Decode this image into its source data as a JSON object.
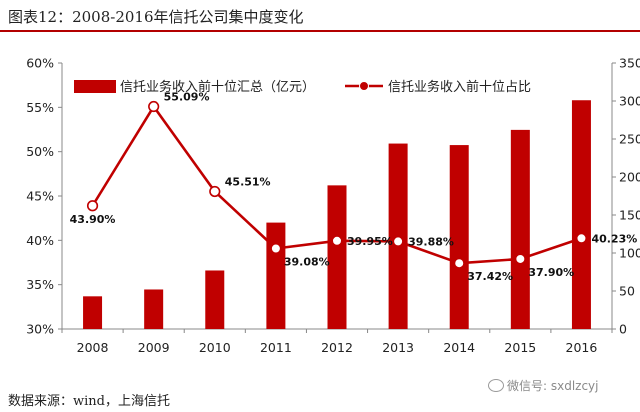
{
  "figure": {
    "title": "图表12：2008-2016年信托公司集中度变化",
    "source": "数据来源：wind，上海信托",
    "watermark": "微信号: sxdlzcyj"
  },
  "colors": {
    "bar": "#c00000",
    "line": "#c00000",
    "axis": "#888888"
  },
  "chart_data": {
    "type": "bar+line",
    "title": "2008-2016年信托公司集中度变化",
    "categories": [
      "2008",
      "2009",
      "2010",
      "2011",
      "2012",
      "2013",
      "2014",
      "2015",
      "2016"
    ],
    "series": [
      {
        "name": "信托业务收入前十位汇总（亿元）",
        "type": "bar",
        "axis": "right",
        "values": [
          43,
          52,
          77,
          140,
          189,
          244,
          242,
          262,
          301
        ]
      },
      {
        "name": "信托业务收入前十位占比",
        "type": "line",
        "axis": "left",
        "values": [
          43.9,
          55.09,
          45.51,
          39.08,
          39.95,
          39.88,
          37.42,
          37.9,
          40.23
        ],
        "labels": [
          "43.90%",
          "55.09%",
          "45.51%",
          "39.08%",
          "39.95%",
          "39.88%",
          "37.42%",
          "37.90%",
          "40.23%"
        ]
      }
    ],
    "left_axis": {
      "ylim": [
        30,
        60
      ],
      "ticks": [
        30,
        35,
        40,
        45,
        50,
        55,
        60
      ],
      "tick_labels": [
        "30%",
        "35%",
        "40%",
        "45%",
        "50%",
        "55%",
        "60%"
      ]
    },
    "right_axis": {
      "ylim": [
        0,
        350
      ],
      "ticks": [
        0,
        50,
        100,
        150,
        200,
        250,
        300,
        350
      ],
      "tick_labels": [
        "0",
        "50",
        "100",
        "150",
        "200",
        "250",
        "300",
        "350"
      ]
    },
    "legend": "top",
    "grid": false
  }
}
